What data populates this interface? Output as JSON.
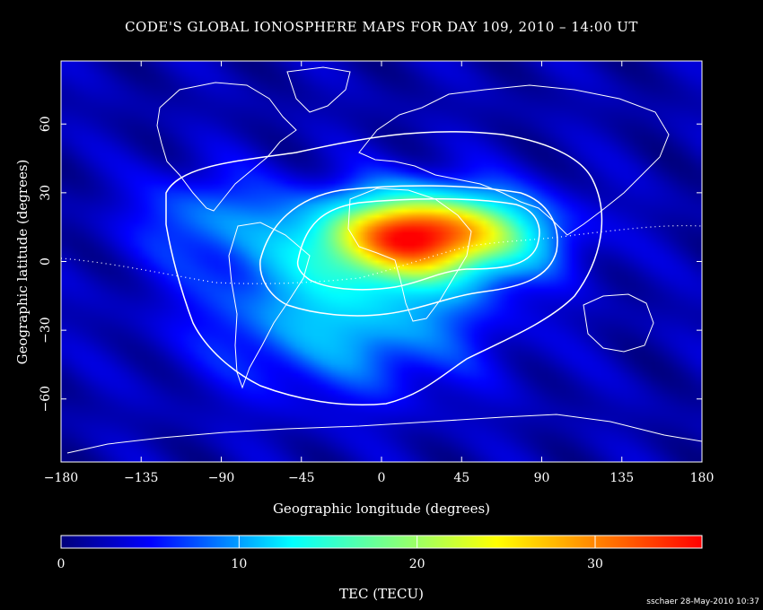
{
  "credit": "sschaer 28-May-2010 10:37",
  "chart_data": {
    "type": "heatmap",
    "title": "CODE'S GLOBAL IONOSPHERE MAPS FOR DAY 109, 2010 – 14:00 UT",
    "xlabel": "Geographic longitude (degrees)",
    "ylabel": "Geographic latitude (degrees)",
    "xlim": [
      -180,
      180
    ],
    "ylim": [
      -87.5,
      87.5
    ],
    "x_ticks": [
      -180,
      -135,
      -90,
      -45,
      0,
      45,
      90,
      135,
      180
    ],
    "x_tick_labels": [
      "−180",
      "−135",
      "−90",
      "−45",
      "0",
      "45",
      "90",
      "135",
      "180"
    ],
    "y_ticks": [
      -60,
      -30,
      0,
      30,
      60
    ],
    "y_tick_labels": [
      "−60",
      "−30",
      "0",
      "30",
      "60"
    ],
    "colorbar": {
      "label": "TEC (TECU)",
      "range": [
        0,
        36
      ],
      "ticks": [
        0,
        10,
        20,
        30
      ],
      "tick_labels": [
        "0",
        "10",
        "20",
        "30"
      ],
      "colors": [
        "#00007a",
        "#0000ff",
        "#00a0ff",
        "#00ffff",
        "#80ff80",
        "#ffff00",
        "#ff8000",
        "#ff0000"
      ]
    },
    "tec_peak": {
      "lon": 25,
      "lat": 12,
      "value": 35
    },
    "contour_levels_tecu": [
      10,
      20,
      30
    ],
    "grid": false
  }
}
